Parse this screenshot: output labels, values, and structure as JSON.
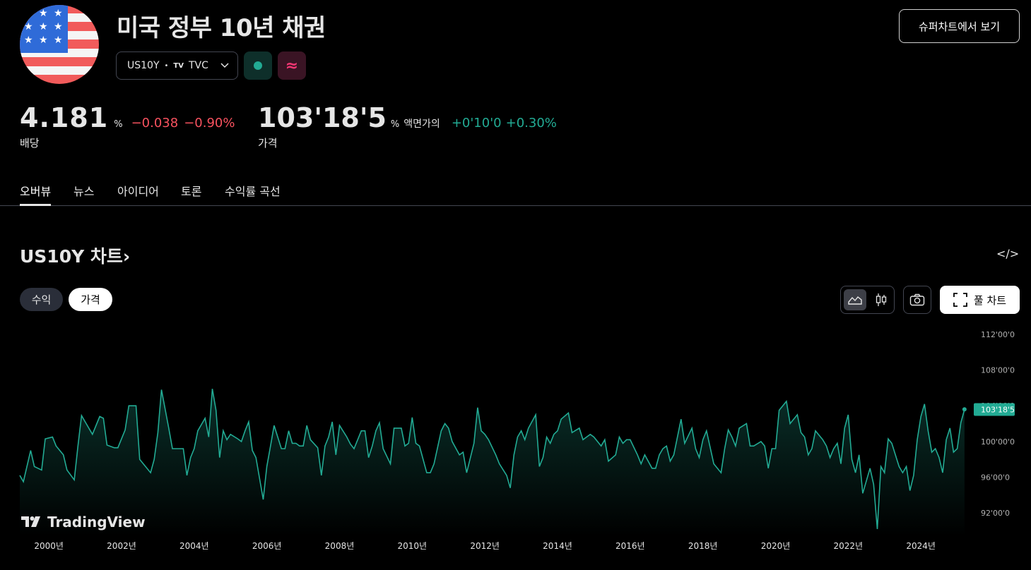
{
  "header": {
    "title": "미국 정부 10년 채권",
    "symbol": "US10Y",
    "separator": "•",
    "exchange_logo": "TV",
    "exchange": "TVC",
    "super_chart_button": "슈퍼차트에서 보기",
    "flag_icon": "us-flag-icon",
    "status_color": "#22ab94",
    "approx_badge": "≈"
  },
  "quote": {
    "yield_value": "4.181",
    "yield_unit": "%",
    "yield_change": "−0.038",
    "yield_change_pct": "−0.90%",
    "yield_label": "배당",
    "price_value": "103'18'5",
    "price_unit": "%",
    "price_unit_label": "액면가의",
    "price_change": "+0'10'0",
    "price_change_pct": "+0.30%",
    "price_label": "가격",
    "negative_color": "#f7525f",
    "positive_color": "#22ab94"
  },
  "tabs": [
    {
      "label": "오버뷰",
      "active": true
    },
    {
      "label": "뉴스",
      "active": false
    },
    {
      "label": "아이디어",
      "active": false
    },
    {
      "label": "토론",
      "active": false
    },
    {
      "label": "수익률 곡선",
      "active": false
    }
  ],
  "chart_section": {
    "title": "US10Y 차트",
    "title_chevron": "›",
    "embed_icon": "</>",
    "pill_yield": "수익",
    "pill_price": "가격",
    "full_chart_label": "풀 차트",
    "brand": "TradingView"
  },
  "chart_data": {
    "type": "area",
    "line_color": "#22ab94",
    "y_ticks": [
      "112'00'0",
      "108'00'0",
      "104'00'0",
      "100'00'0",
      "96'00'0",
      "92'00'0"
    ],
    "y_tick_values": [
      112,
      108,
      104,
      100,
      96,
      92
    ],
    "ylim": [
      89.4,
      113.5
    ],
    "x_ticks": [
      "2000년",
      "2002년",
      "2004년",
      "2006년",
      "2008년",
      "2010년",
      "2012년",
      "2014년",
      "2016년",
      "2018년",
      "2020년",
      "2022년",
      "2024년"
    ],
    "x_tick_values": [
      2000,
      2002,
      2004,
      2006,
      2008,
      2010,
      2012,
      2014,
      2016,
      2018,
      2020,
      2022,
      2024
    ],
    "xlim": [
      1999.2,
      2025.3
    ],
    "last_price_label": "103'18'5",
    "last_value": 103.58,
    "series": [
      {
        "values": [
          [
            1999.2,
            96.2
          ],
          [
            1999.3,
            95.5
          ],
          [
            1999.5,
            99
          ],
          [
            1999.6,
            97.2
          ],
          [
            1999.8,
            96.8
          ],
          [
            1999.9,
            100.3
          ],
          [
            2000.1,
            100.5
          ],
          [
            2000.2,
            99.5
          ],
          [
            2000.4,
            98.5
          ],
          [
            2000.5,
            96.8
          ],
          [
            2000.7,
            95.7
          ],
          [
            2000.8,
            99.5
          ],
          [
            2000.9,
            102.9
          ],
          [
            2001.1,
            101.5
          ],
          [
            2001.2,
            100.8
          ],
          [
            2001.4,
            102.8
          ],
          [
            2001.5,
            102.6
          ],
          [
            2001.6,
            99.6
          ],
          [
            2001.8,
            99.3
          ],
          [
            2001.9,
            99.3
          ],
          [
            2002.1,
            101.3
          ],
          [
            2002.2,
            104
          ],
          [
            2002.4,
            104
          ],
          [
            2002.5,
            98
          ],
          [
            2002.6,
            97.5
          ],
          [
            2002.8,
            96.5
          ],
          [
            2002.9,
            98
          ],
          [
            2003,
            101
          ],
          [
            2003.1,
            105.8
          ],
          [
            2003.3,
            101.5
          ],
          [
            2003.4,
            99.2
          ],
          [
            2003.6,
            99.2
          ],
          [
            2003.7,
            99.2
          ],
          [
            2003.8,
            96.2
          ],
          [
            2003.9,
            98.2
          ],
          [
            2004,
            99.2
          ],
          [
            2004.1,
            101.2
          ],
          [
            2004.3,
            102.6
          ],
          [
            2004.4,
            100.5
          ],
          [
            2004.5,
            105.9
          ],
          [
            2004.6,
            103.5
          ],
          [
            2004.7,
            98.2
          ],
          [
            2004.8,
            101.2
          ],
          [
            2004.9,
            100.2
          ],
          [
            2005,
            100.8
          ],
          [
            2005.2,
            100.3
          ],
          [
            2005.3,
            100
          ],
          [
            2005.4,
            101.2
          ],
          [
            2005.5,
            102.2
          ],
          [
            2005.6,
            99
          ],
          [
            2005.7,
            98.2
          ],
          [
            2005.9,
            93.5
          ],
          [
            2006,
            97.2
          ],
          [
            2006.1,
            99.5
          ],
          [
            2006.2,
            101.8
          ],
          [
            2006.4,
            99.2
          ],
          [
            2006.5,
            99.2
          ],
          [
            2006.6,
            101.2
          ],
          [
            2006.7,
            99.8
          ],
          [
            2006.8,
            99.8
          ],
          [
            2006.9,
            99.5
          ],
          [
            2007,
            99.5
          ],
          [
            2007.1,
            101.8
          ],
          [
            2007.2,
            100.2
          ],
          [
            2007.4,
            99.3
          ],
          [
            2007.5,
            96.2
          ],
          [
            2007.6,
            99.5
          ],
          [
            2007.7,
            100.5
          ],
          [
            2007.8,
            102.2
          ],
          [
            2007.9,
            98.5
          ],
          [
            2008,
            101.8
          ],
          [
            2008.2,
            100.5
          ],
          [
            2008.3,
            99.7
          ],
          [
            2008.4,
            99.2
          ],
          [
            2008.6,
            101.2
          ],
          [
            2008.7,
            101.2
          ],
          [
            2008.8,
            98.2
          ],
          [
            2008.9,
            99.5
          ],
          [
            2009,
            101.2
          ],
          [
            2009.1,
            102.1
          ],
          [
            2009.2,
            99.2
          ],
          [
            2009.4,
            97.5
          ],
          [
            2009.5,
            101.5
          ],
          [
            2009.7,
            101.5
          ],
          [
            2009.8,
            99.5
          ],
          [
            2009.9,
            99.8
          ],
          [
            2010,
            102.7
          ],
          [
            2010.1,
            99.8
          ],
          [
            2010.2,
            99.5
          ],
          [
            2010.4,
            96.5
          ],
          [
            2010.5,
            96.5
          ],
          [
            2010.6,
            97.5
          ],
          [
            2010.8,
            101.2
          ],
          [
            2010.9,
            102
          ],
          [
            2011,
            101.5
          ],
          [
            2011.1,
            100
          ],
          [
            2011.3,
            98.5
          ],
          [
            2011.4,
            98.8
          ],
          [
            2011.5,
            96.5
          ],
          [
            2011.7,
            99.8
          ],
          [
            2011.8,
            103.8
          ],
          [
            2011.9,
            101.2
          ],
          [
            2012,
            100.8
          ],
          [
            2012.1,
            100.2
          ],
          [
            2012.3,
            98.5
          ],
          [
            2012.4,
            97.5
          ],
          [
            2012.6,
            96.2
          ],
          [
            2012.7,
            94.8
          ],
          [
            2012.8,
            98.5
          ],
          [
            2012.9,
            100.5
          ],
          [
            2013,
            101.2
          ],
          [
            2013.1,
            100.2
          ],
          [
            2013.2,
            101.5
          ],
          [
            2013.4,
            103
          ],
          [
            2013.5,
            97.2
          ],
          [
            2013.6,
            98.2
          ],
          [
            2013.7,
            100.5
          ],
          [
            2013.8,
            99.8
          ],
          [
            2013.9,
            100.8
          ],
          [
            2014,
            101.2
          ],
          [
            2014.1,
            102.5
          ],
          [
            2014.3,
            103.2
          ],
          [
            2014.4,
            101
          ],
          [
            2014.6,
            101.5
          ],
          [
            2014.7,
            100.2
          ],
          [
            2014.8,
            100.5
          ],
          [
            2014.9,
            100.8
          ],
          [
            2015,
            100.5
          ],
          [
            2015.2,
            99.5
          ],
          [
            2015.3,
            100.2
          ],
          [
            2015.4,
            97.8
          ],
          [
            2015.6,
            98.5
          ],
          [
            2015.7,
            100.5
          ],
          [
            2015.8,
            99.8
          ],
          [
            2015.9,
            100.2
          ],
          [
            2016,
            100.2
          ],
          [
            2016.2,
            98.5
          ],
          [
            2016.3,
            97.5
          ],
          [
            2016.4,
            98.5
          ],
          [
            2016.6,
            97
          ],
          [
            2016.7,
            97
          ],
          [
            2016.8,
            98.5
          ],
          [
            2016.9,
            99.2
          ],
          [
            2017,
            99.5
          ],
          [
            2017.1,
            97.8
          ],
          [
            2017.2,
            98.5
          ],
          [
            2017.4,
            102.5
          ],
          [
            2017.5,
            99.8
          ],
          [
            2017.7,
            101.5
          ],
          [
            2017.8,
            99.2
          ],
          [
            2017.9,
            98.2
          ],
          [
            2018,
            100.2
          ],
          [
            2018.1,
            101.2
          ],
          [
            2018.3,
            97.5
          ],
          [
            2018.4,
            97
          ],
          [
            2018.5,
            96.5
          ],
          [
            2018.6,
            99.2
          ],
          [
            2018.7,
            101.3
          ],
          [
            2018.8,
            100.5
          ],
          [
            2018.9,
            99.5
          ],
          [
            2019,
            101.5
          ],
          [
            2019.2,
            102
          ],
          [
            2019.3,
            99.5
          ],
          [
            2019.4,
            99.5
          ],
          [
            2019.6,
            100
          ],
          [
            2019.7,
            99.5
          ],
          [
            2019.8,
            97
          ],
          [
            2019.9,
            99.2
          ],
          [
            2020,
            99.2
          ],
          [
            2020.1,
            103.5
          ],
          [
            2020.3,
            104.5
          ],
          [
            2020.4,
            102
          ],
          [
            2020.6,
            103
          ],
          [
            2020.7,
            101
          ],
          [
            2020.8,
            100.5
          ],
          [
            2020.9,
            98.5
          ],
          [
            2021,
            99.2
          ],
          [
            2021.1,
            101.2
          ],
          [
            2021.3,
            100.2
          ],
          [
            2021.4,
            99.5
          ],
          [
            2021.5,
            98.2
          ],
          [
            2021.6,
            99.2
          ],
          [
            2021.7,
            99.8
          ],
          [
            2021.8,
            97.5
          ],
          [
            2021.9,
            101.5
          ],
          [
            2022,
            103
          ],
          [
            2022.1,
            98
          ],
          [
            2022.2,
            96.5
          ],
          [
            2022.3,
            98.5
          ],
          [
            2022.4,
            94.2
          ],
          [
            2022.6,
            97
          ],
          [
            2022.7,
            95.2
          ],
          [
            2022.8,
            90.2
          ],
          [
            2022.9,
            97.2
          ],
          [
            2023,
            96.5
          ],
          [
            2023.1,
            100.3
          ],
          [
            2023.2,
            99.8
          ],
          [
            2023.4,
            97.2
          ],
          [
            2023.5,
            96.5
          ],
          [
            2023.6,
            97.2
          ],
          [
            2023.7,
            94.5
          ],
          [
            2023.8,
            96.2
          ],
          [
            2023.9,
            100.2
          ],
          [
            2024,
            102.8
          ],
          [
            2024.1,
            104.2
          ],
          [
            2024.2,
            101.2
          ],
          [
            2024.3,
            98.8
          ],
          [
            2024.4,
            99.2
          ],
          [
            2024.5,
            98.2
          ],
          [
            2024.6,
            96.5
          ],
          [
            2024.7,
            100.2
          ],
          [
            2024.8,
            101.5
          ],
          [
            2024.9,
            98.8
          ],
          [
            2025,
            99.2
          ],
          [
            2025.1,
            102.1
          ],
          [
            2025.2,
            103.6
          ]
        ]
      }
    ]
  }
}
